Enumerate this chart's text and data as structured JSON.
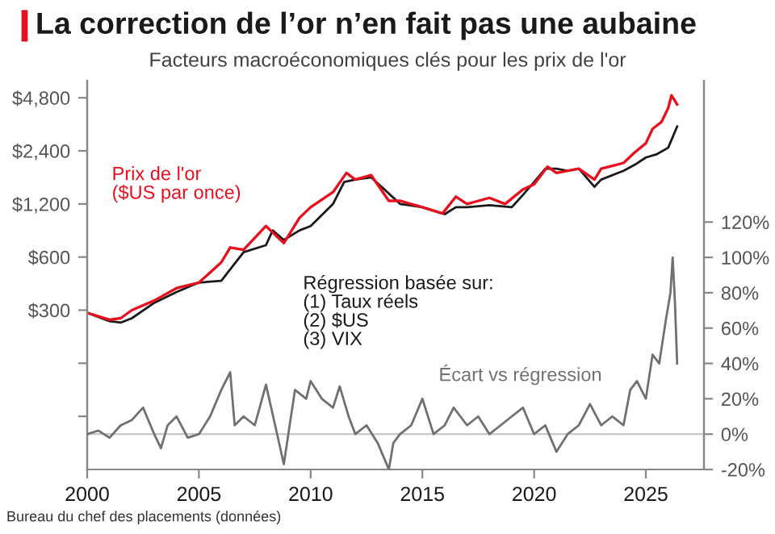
{
  "chart_data": {
    "type": "line",
    "title": "La correction de l’or n’en fait pas une aubaine",
    "subtitle": "Facteurs macroéconomiques clés pour les prix de l'or",
    "annotations": [
      "Bureau du chef des placements (données)"
    ],
    "log": "y",
    "grid": false,
    "legend": false,
    "marker": "none",
    "line_style": "solid",
    "xlim": [
      2000,
      2027.6
    ],
    "xticks": [
      2000,
      2005,
      2010,
      2015,
      2020,
      2025
    ],
    "ylim": [
      37.5,
      6000
    ],
    "yticks": [
      {
        "value": 75,
        "label": null
      },
      {
        "value": 150,
        "label": null
      },
      {
        "value": 300,
        "label": "$300"
      },
      {
        "value": 600,
        "label": "$600"
      },
      {
        "value": 1200,
        "label": "$1,200"
      },
      {
        "value": 2400,
        "label": "$2,400"
      },
      {
        "value": 4800,
        "label": "$4,800"
      }
    ],
    "y2lim": [
      -20,
      200
    ],
    "y2ticks": [
      {
        "value": -20,
        "label": "-20%"
      },
      {
        "value": 0,
        "label": "0%"
      },
      {
        "value": 20,
        "label": "20%"
      },
      {
        "value": 40,
        "label": "40%"
      },
      {
        "value": 60,
        "label": "60%"
      },
      {
        "value": 80,
        "label": "80%"
      },
      {
        "value": 100,
        "label": "100%"
      },
      {
        "value": 120,
        "label": "120%"
      }
    ],
    "ref_lines": [
      {
        "axis": "y2",
        "value": 0,
        "label": null,
        "color": "#c8c8c8"
      }
    ],
    "series": [
      {
        "name": "Régression basée sur:\n(1) Taux réels\n(2) $US\n(3) VIX",
        "color": "#1a1a1a",
        "x": [
          2000,
          2001,
          2001.5,
          2002,
          2003,
          2004,
          2005,
          2006,
          2006.5,
          2007,
          2008,
          2008.3,
          2008.8,
          2009.5,
          2010,
          2011,
          2011.5,
          2012,
          2012.7,
          2013.3,
          2014,
          2015,
          2016,
          2016.5,
          2017,
          2018,
          2019,
          2019.5,
          2020,
          2020.5,
          2021,
          2021.5,
          2022,
          2022.7,
          2023,
          2024,
          2024.5,
          2025,
          2025.5,
          2026,
          2026.4
        ],
        "values": [
          290,
          260,
          255,
          270,
          330,
          380,
          430,
          440,
          530,
          640,
          700,
          850,
          750,
          850,
          900,
          1200,
          1600,
          1650,
          1700,
          1450,
          1200,
          1150,
          1050,
          1150,
          1150,
          1180,
          1150,
          1350,
          1600,
          1900,
          1900,
          1850,
          1900,
          1500,
          1650,
          1850,
          2000,
          2200,
          2300,
          2500,
          3300
        ]
      },
      {
        "name": "Prix de l'or\n($US par once)",
        "color": "#e8101e",
        "x": [
          2000,
          2001,
          2001.5,
          2002,
          2003,
          2004,
          2005,
          2006,
          2006.4,
          2007,
          2008,
          2008.8,
          2009.5,
          2010,
          2011,
          2011.6,
          2012,
          2012.7,
          2013.5,
          2014,
          2015,
          2015.9,
          2016.5,
          2017,
          2018,
          2018.7,
          2019.5,
          2020,
          2020.6,
          2021,
          2022,
          2022.7,
          2023,
          2024,
          2024.5,
          2025,
          2025.3,
          2025.7,
          2026,
          2026.15,
          2026.4
        ],
        "values": [
          290,
          265,
          270,
          300,
          340,
          400,
          430,
          560,
          680,
          660,
          900,
          720,
          1000,
          1150,
          1400,
          1800,
          1650,
          1750,
          1250,
          1250,
          1150,
          1060,
          1320,
          1200,
          1300,
          1200,
          1450,
          1550,
          1950,
          1800,
          1900,
          1650,
          1900,
          2050,
          2350,
          2650,
          3200,
          3500,
          4200,
          4950,
          4400
        ]
      },
      {
        "name": "Écart vs régression",
        "color": "#707070",
        "axis": "y2",
        "x": [
          2000,
          2000.5,
          2001,
          2001.5,
          2002,
          2002.5,
          2003,
          2003.3,
          2003.6,
          2004,
          2004.5,
          2005,
          2005.5,
          2006,
          2006.4,
          2006.6,
          2007,
          2007.5,
          2008,
          2008.5,
          2008.8,
          2009,
          2009.3,
          2009.8,
          2010,
          2010.5,
          2011,
          2011.3,
          2011.7,
          2012,
          2012.5,
          2013,
          2013.5,
          2013.7,
          2014,
          2014.5,
          2015,
          2015.5,
          2016,
          2016.4,
          2017,
          2017.5,
          2018,
          2018.5,
          2019,
          2019.5,
          2020,
          2020.5,
          2021,
          2021.5,
          2022,
          2022.5,
          2023,
          2023.5,
          2024,
          2024.3,
          2024.6,
          2025,
          2025.3,
          2025.6,
          2025.9,
          2026.1,
          2026.2,
          2026.3,
          2026.4
        ],
        "values": [
          0,
          2,
          -2,
          5,
          8,
          15,
          0,
          -8,
          5,
          10,
          -2,
          0,
          10,
          25,
          35,
          5,
          10,
          5,
          28,
          0,
          -17,
          0,
          25,
          20,
          30,
          20,
          15,
          27,
          10,
          0,
          5,
          -5,
          -20,
          -5,
          0,
          5,
          20,
          0,
          5,
          15,
          5,
          10,
          0,
          5,
          10,
          15,
          0,
          5,
          -10,
          0,
          5,
          17,
          5,
          10,
          5,
          25,
          30,
          20,
          45,
          40,
          65,
          80,
          100,
          75,
          40
        ]
      }
    ]
  }
}
